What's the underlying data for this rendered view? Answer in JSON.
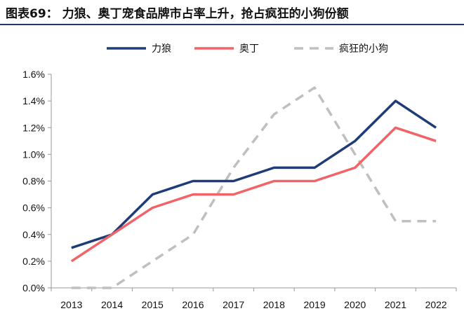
{
  "figure": {
    "title": "图表69： 力狼、奥丁宠食品牌市占率上升，抢占疯狂的小狗份额"
  },
  "colors": {
    "title_rule": "#1f3864",
    "axis": "#999999"
  },
  "chart_data": {
    "type": "line",
    "title": "",
    "xlabel": "",
    "ylabel": "",
    "x": [
      "2013",
      "2014",
      "2015",
      "2016",
      "2017",
      "2018",
      "2019",
      "2020",
      "2021",
      "2022"
    ],
    "ylim": [
      0,
      1.6
    ],
    "yticks": [
      "0.0%",
      "0.2%",
      "0.4%",
      "0.6%",
      "0.8%",
      "1.0%",
      "1.2%",
      "1.4%",
      "1.6%"
    ],
    "grid": false,
    "legend_position": "top",
    "series": [
      {
        "name": "力狼",
        "color": "#1f3c78",
        "dash": "solid",
        "values": [
          0.3,
          0.4,
          0.7,
          0.8,
          0.8,
          0.9,
          0.9,
          1.1,
          1.4,
          1.2
        ]
      },
      {
        "name": "奥丁",
        "color": "#f06468",
        "dash": "solid",
        "values": [
          0.2,
          0.4,
          0.6,
          0.7,
          0.7,
          0.8,
          0.8,
          0.9,
          1.2,
          1.1
        ]
      },
      {
        "name": "疯狂的小狗",
        "color": "#bfbfbf",
        "dash": "dashed",
        "values": [
          0.0,
          0.0,
          0.2,
          0.4,
          0.9,
          1.3,
          1.5,
          1.0,
          0.5,
          0.5
        ]
      }
    ]
  }
}
